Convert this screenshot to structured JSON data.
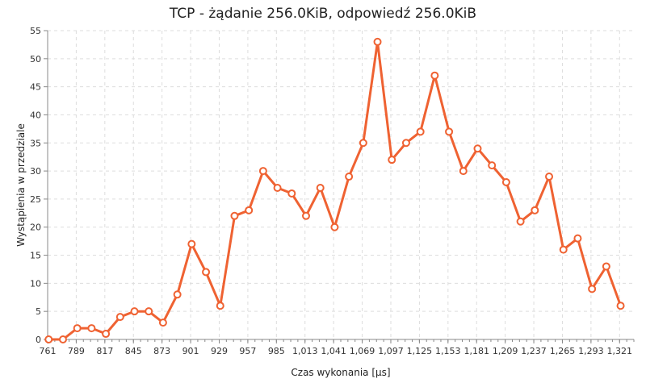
{
  "chart_data": {
    "type": "line",
    "title": "TCP - żądanie 256.0KiB, odpowiedź 256.0KiB",
    "xlabel": "Czas wykonania [µs]",
    "ylabel": "Wystąpienia w przedziale",
    "xlim": [
      761,
      1335
    ],
    "ylim": [
      0,
      55
    ],
    "x_ticks": [
      "761",
      "789",
      "817",
      "845",
      "873",
      "901",
      "929",
      "957",
      "985",
      "1,013",
      "1,041",
      "1,069",
      "1,097",
      "1,125",
      "1,153",
      "1,181",
      "1,209",
      "1,237",
      "1,265",
      "1,293",
      "1,321"
    ],
    "y_ticks": [
      0,
      5,
      10,
      15,
      20,
      25,
      30,
      35,
      40,
      45,
      50,
      55
    ],
    "grid": true,
    "legend": "none",
    "colors": {
      "line": "#ef6232",
      "marker_fill": "#ffffff",
      "grid": "#dddddd",
      "axis": "#888888"
    },
    "series": [
      {
        "x": [
          762,
          776,
          790,
          804,
          818,
          832,
          846,
          860,
          874,
          888,
          902,
          916,
          930,
          944,
          958,
          972,
          986,
          1000,
          1014,
          1028,
          1042,
          1056,
          1070,
          1084,
          1098,
          1112,
          1126,
          1140,
          1154,
          1168,
          1182,
          1196,
          1210,
          1224,
          1238,
          1252,
          1266,
          1280,
          1294,
          1308,
          1322
        ],
        "values": [
          0,
          0,
          2,
          2,
          1,
          4,
          5,
          5,
          3,
          8,
          17,
          12,
          6,
          22,
          23,
          30,
          27,
          26,
          22,
          27,
          20,
          29,
          35,
          53,
          32,
          35,
          37,
          47,
          37,
          30,
          34,
          31,
          28,
          21,
          23,
          29,
          16,
          18,
          9,
          13,
          6
        ]
      }
    ]
  }
}
